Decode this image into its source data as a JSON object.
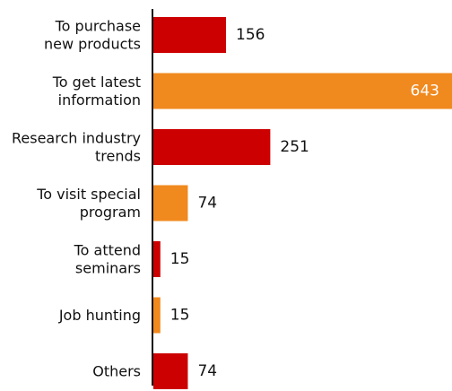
{
  "chart_data": {
    "type": "bar",
    "orientation": "horizontal",
    "categories": [
      [
        "To purchase",
        "new products"
      ],
      [
        "To get latest",
        "information"
      ],
      [
        "Research industry",
        "trends"
      ],
      [
        "To visit special",
        "program"
      ],
      [
        "To attend",
        "seminars"
      ],
      [
        "Job hunting"
      ],
      [
        "Others"
      ]
    ],
    "values": [
      156,
      643,
      251,
      74,
      15,
      15,
      74
    ],
    "bar_colors": [
      "#cc0000",
      "#f0891e",
      "#cc0000",
      "#f0891e",
      "#cc0000",
      "#f0891e",
      "#cc0000"
    ],
    "value_label_inside": [
      false,
      true,
      false,
      false,
      false,
      false,
      false
    ],
    "xlim": [
      0,
      643
    ],
    "grid": false,
    "legend": "none"
  }
}
